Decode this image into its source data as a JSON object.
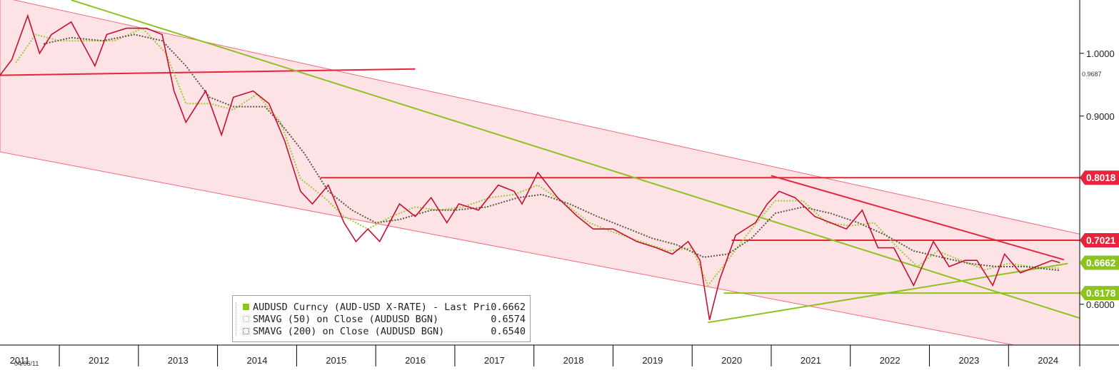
{
  "chart_data": {
    "type": "line",
    "title": "",
    "ylim": [
      0.535,
      1.085
    ],
    "y_ticks": [
      {
        "value": 1.0,
        "label": "1.0000"
      },
      {
        "value": 0.9,
        "label": "0.9000"
      },
      {
        "value": 0.6,
        "label": "0.6000"
      }
    ],
    "y_tick_label_partial": "0.9687",
    "x_axis_first_label": "04/06/11",
    "x_ticks": [
      "2011",
      "2012",
      "2013",
      "2014",
      "2015",
      "2016",
      "2017",
      "2018",
      "2019",
      "2020",
      "2021",
      "2022",
      "2023",
      "2024"
    ],
    "xlim": [
      2011.25,
      2024.9
    ],
    "grid": false,
    "legend_position": "bottom-left",
    "series": [
      {
        "name": "AUDUSD Curncy (AUD-USD X-RATE) - Last Price",
        "value_label": "0.6662",
        "color": "#c8102e",
        "style": "candles",
        "points": [
          [
            2011.25,
            0.965
          ],
          [
            2011.4,
            0.99
          ],
          [
            2011.6,
            1.06
          ],
          [
            2011.75,
            1.0
          ],
          [
            2011.9,
            1.03
          ],
          [
            2012.15,
            1.05
          ],
          [
            2012.45,
            0.98
          ],
          [
            2012.6,
            1.03
          ],
          [
            2012.85,
            1.04
          ],
          [
            2013.1,
            1.04
          ],
          [
            2013.3,
            1.03
          ],
          [
            2013.45,
            0.94
          ],
          [
            2013.6,
            0.89
          ],
          [
            2013.85,
            0.94
          ],
          [
            2014.05,
            0.87
          ],
          [
            2014.2,
            0.93
          ],
          [
            2014.45,
            0.94
          ],
          [
            2014.65,
            0.92
          ],
          [
            2014.85,
            0.86
          ],
          [
            2015.05,
            0.78
          ],
          [
            2015.2,
            0.76
          ],
          [
            2015.4,
            0.79
          ],
          [
            2015.6,
            0.73
          ],
          [
            2015.75,
            0.7
          ],
          [
            2015.9,
            0.72
          ],
          [
            2016.05,
            0.7
          ],
          [
            2016.3,
            0.76
          ],
          [
            2016.5,
            0.74
          ],
          [
            2016.7,
            0.77
          ],
          [
            2016.9,
            0.73
          ],
          [
            2017.05,
            0.76
          ],
          [
            2017.3,
            0.75
          ],
          [
            2017.55,
            0.79
          ],
          [
            2017.75,
            0.78
          ],
          [
            2017.85,
            0.76
          ],
          [
            2018.05,
            0.81
          ],
          [
            2018.3,
            0.77
          ],
          [
            2018.55,
            0.74
          ],
          [
            2018.75,
            0.72
          ],
          [
            2019.0,
            0.72
          ],
          [
            2019.3,
            0.7
          ],
          [
            2019.55,
            0.69
          ],
          [
            2019.75,
            0.68
          ],
          [
            2019.95,
            0.7
          ],
          [
            2020.1,
            0.67
          ],
          [
            2020.22,
            0.575
          ],
          [
            2020.35,
            0.64
          ],
          [
            2020.55,
            0.71
          ],
          [
            2020.8,
            0.73
          ],
          [
            2020.95,
            0.76
          ],
          [
            2021.1,
            0.78
          ],
          [
            2021.3,
            0.77
          ],
          [
            2021.55,
            0.74
          ],
          [
            2021.75,
            0.73
          ],
          [
            2021.95,
            0.72
          ],
          [
            2022.15,
            0.75
          ],
          [
            2022.35,
            0.69
          ],
          [
            2022.55,
            0.69
          ],
          [
            2022.8,
            0.63
          ],
          [
            2023.05,
            0.7
          ],
          [
            2023.25,
            0.66
          ],
          [
            2023.45,
            0.67
          ],
          [
            2023.6,
            0.67
          ],
          [
            2023.8,
            0.63
          ],
          [
            2023.95,
            0.68
          ],
          [
            2024.15,
            0.65
          ],
          [
            2024.35,
            0.66
          ],
          [
            2024.55,
            0.67
          ],
          [
            2024.65,
            0.6662
          ]
        ]
      },
      {
        "name": "SMAVG (50) on Close (AUDUSD BGN)",
        "value_label": "0.6574",
        "color": "#9acd32",
        "style": "dotted",
        "points": [
          [
            2011.45,
            0.985
          ],
          [
            2011.7,
            1.03
          ],
          [
            2012.0,
            1.02
          ],
          [
            2012.35,
            1.02
          ],
          [
            2012.7,
            1.02
          ],
          [
            2013.05,
            1.04
          ],
          [
            2013.35,
            1.0
          ],
          [
            2013.6,
            0.92
          ],
          [
            2013.9,
            0.92
          ],
          [
            2014.2,
            0.91
          ],
          [
            2014.5,
            0.935
          ],
          [
            2014.8,
            0.89
          ],
          [
            2015.05,
            0.8
          ],
          [
            2015.35,
            0.77
          ],
          [
            2015.6,
            0.74
          ],
          [
            2015.9,
            0.72
          ],
          [
            2016.2,
            0.74
          ],
          [
            2016.5,
            0.755
          ],
          [
            2016.8,
            0.75
          ],
          [
            2017.1,
            0.755
          ],
          [
            2017.45,
            0.77
          ],
          [
            2017.75,
            0.775
          ],
          [
            2018.05,
            0.79
          ],
          [
            2018.4,
            0.76
          ],
          [
            2018.7,
            0.73
          ],
          [
            2019.0,
            0.715
          ],
          [
            2019.35,
            0.7
          ],
          [
            2019.7,
            0.685
          ],
          [
            2020.0,
            0.69
          ],
          [
            2020.2,
            0.63
          ],
          [
            2020.45,
            0.67
          ],
          [
            2020.75,
            0.72
          ],
          [
            2021.05,
            0.765
          ],
          [
            2021.4,
            0.765
          ],
          [
            2021.7,
            0.73
          ],
          [
            2022.0,
            0.725
          ],
          [
            2022.3,
            0.73
          ],
          [
            2022.6,
            0.69
          ],
          [
            2022.85,
            0.66
          ],
          [
            2023.1,
            0.685
          ],
          [
            2023.4,
            0.67
          ],
          [
            2023.7,
            0.655
          ],
          [
            2024.0,
            0.665
          ],
          [
            2024.3,
            0.66
          ],
          [
            2024.65,
            0.6574
          ]
        ]
      },
      {
        "name": "SMAVG (200) on Close (AUDUSD BGN)",
        "value_label": "0.6540",
        "color": "#5a5a40",
        "style": "dotted",
        "points": [
          [
            2011.8,
            1.015
          ],
          [
            2012.15,
            1.025
          ],
          [
            2012.55,
            1.02
          ],
          [
            2012.95,
            1.03
          ],
          [
            2013.3,
            1.02
          ],
          [
            2013.6,
            0.98
          ],
          [
            2013.9,
            0.93
          ],
          [
            2014.2,
            0.915
          ],
          [
            2014.6,
            0.915
          ],
          [
            2014.85,
            0.88
          ],
          [
            2015.1,
            0.84
          ],
          [
            2015.4,
            0.78
          ],
          [
            2015.7,
            0.75
          ],
          [
            2016.0,
            0.73
          ],
          [
            2016.3,
            0.735
          ],
          [
            2016.7,
            0.75
          ],
          [
            2017.0,
            0.75
          ],
          [
            2017.4,
            0.755
          ],
          [
            2017.8,
            0.77
          ],
          [
            2018.1,
            0.775
          ],
          [
            2018.45,
            0.76
          ],
          [
            2018.8,
            0.74
          ],
          [
            2019.1,
            0.725
          ],
          [
            2019.5,
            0.705
          ],
          [
            2019.8,
            0.695
          ],
          [
            2020.15,
            0.675
          ],
          [
            2020.45,
            0.68
          ],
          [
            2020.75,
            0.705
          ],
          [
            2021.05,
            0.745
          ],
          [
            2021.4,
            0.755
          ],
          [
            2021.75,
            0.745
          ],
          [
            2022.1,
            0.73
          ],
          [
            2022.45,
            0.71
          ],
          [
            2022.8,
            0.685
          ],
          [
            2023.15,
            0.675
          ],
          [
            2023.5,
            0.665
          ],
          [
            2023.85,
            0.66
          ],
          [
            2024.2,
            0.66
          ],
          [
            2024.65,
            0.654
          ]
        ]
      }
    ],
    "price_tags": [
      {
        "label": "0.8018",
        "value": 0.8018,
        "color": "#e8243c"
      },
      {
        "label": "0.7021",
        "value": 0.7021,
        "color": "#e8243c"
      },
      {
        "label": "0.6662",
        "value": 0.6662,
        "color": "#8dc21f"
      },
      {
        "label": "0.6178",
        "value": 0.6178,
        "color": "#8dc21f"
      }
    ],
    "trend_lines": [
      {
        "kind": "red",
        "x0": 2011.25,
        "y0": 0.965,
        "x1": 2016.5,
        "y1": 0.975
      },
      {
        "kind": "red",
        "x0": 2015.3,
        "y0": 0.8018,
        "x1": 2024.9,
        "y1": 0.8018
      },
      {
        "kind": "red",
        "x0": 2020.5,
        "y0": 0.7021,
        "x1": 2024.9,
        "y1": 0.7021
      },
      {
        "kind": "red",
        "x0": 2021.0,
        "y0": 0.805,
        "x1": 2024.7,
        "y1": 0.671
      },
      {
        "kind": "green",
        "x0": 2012.15,
        "y0": 1.085,
        "x1": 2024.9,
        "y1": 0.578
      },
      {
        "kind": "green",
        "x0": 2020.2,
        "y0": 0.571,
        "x1": 2024.75,
        "y1": 0.665
      },
      {
        "kind": "green",
        "x0": 2020.4,
        "y0": 0.6178,
        "x1": 2024.9,
        "y1": 0.6178
      }
    ],
    "channel": [
      [
        2011.25,
        1.09
      ],
      [
        2024.9,
        0.712
      ],
      [
        2024.9,
        0.515
      ],
      [
        2011.25,
        0.843
      ]
    ],
    "channel_color": "#fde2e6"
  },
  "legend": {
    "rows": [
      {
        "label": "AUDUSD Curncy (AUD-USD X-RATE) - Last Price",
        "value": "0.6662",
        "color": "#8dc21f",
        "filled": true
      },
      {
        "label": "SMAVG (50)  on Close (AUDUSD BGN)",
        "value": "0.6574",
        "color": "#9acd32",
        "filled": false
      },
      {
        "label": "SMAVG (200)  on Close (AUDUSD BGN)",
        "value": "0.6540",
        "color": "#5a5a40",
        "filled": false
      }
    ]
  }
}
